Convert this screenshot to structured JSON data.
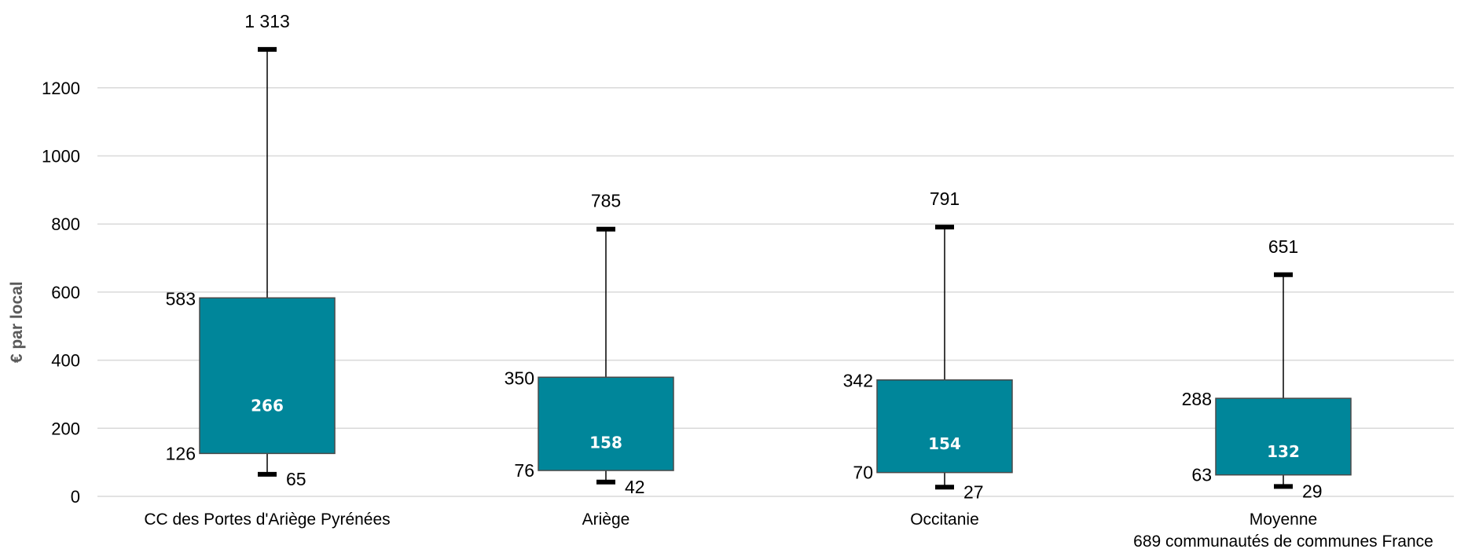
{
  "chart_data": {
    "type": "boxplot",
    "title": "",
    "xlabel": "",
    "ylabel": "€ par local",
    "ylim": [
      0,
      1300
    ],
    "yticks": [
      0,
      200,
      400,
      600,
      800,
      1000,
      1200
    ],
    "grid": true,
    "colors": {
      "box": "#00869A",
      "box_stroke": "#4A4A4A",
      "grid": "#D9D9D9",
      "whisker": "#000000"
    },
    "categories": [
      {
        "lines": [
          "CC des Portes d'Ariège Pyrénées"
        ]
      },
      {
        "lines": [
          "Ariège"
        ]
      },
      {
        "lines": [
          "Occitanie"
        ]
      },
      {
        "lines": [
          "Moyenne",
          "689 communautés de communes France"
        ]
      }
    ],
    "series": [
      {
        "min": 65,
        "q1": 126,
        "median": 266,
        "q3": 583,
        "max": 1313,
        "labels": {
          "min": "65",
          "q1": "126",
          "median": "266",
          "q3": "583",
          "max": "1 313"
        }
      },
      {
        "min": 42,
        "q1": 76,
        "median": 158,
        "q3": 350,
        "max": 785,
        "labels": {
          "min": "42",
          "q1": "76",
          "median": "158",
          "q3": "350",
          "max": "785"
        }
      },
      {
        "min": 27,
        "q1": 70,
        "median": 154,
        "q3": 342,
        "max": 791,
        "labels": {
          "min": "27",
          "q1": "70",
          "median": "154",
          "q3": "342",
          "max": "791"
        }
      },
      {
        "min": 29,
        "q1": 63,
        "median": 132,
        "q3": 288,
        "max": 651,
        "labels": {
          "min": "29",
          "q1": "63",
          "median": "132",
          "q3": "288",
          "max": "651"
        }
      }
    ]
  }
}
